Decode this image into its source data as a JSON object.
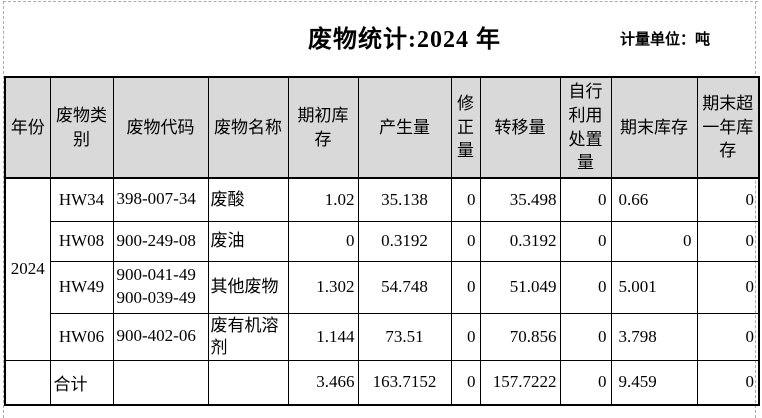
{
  "page": {
    "title": "废物统计:2024 年",
    "unit_label": "计量单位：吨"
  },
  "table": {
    "columns": [
      "年份",
      "废物类别",
      "废物代码",
      "废物名称",
      "期初库存",
      "产生量",
      "修正量",
      "转移量",
      "自行利用处置量",
      "期末库存",
      "期末超一年库存"
    ],
    "year": "2024",
    "rows": [
      {
        "category": "HW34",
        "code": "398-007-34",
        "name": "废酸",
        "opening": "1.02",
        "generated": "35.138",
        "corrected": "0",
        "transferred": "35.498",
        "self_disposed": "0",
        "closing": "0.66",
        "over_one_year": "0"
      },
      {
        "category": "HW08",
        "code": "900-249-08",
        "name": "废油",
        "opening": "0",
        "generated": "0.3192",
        "corrected": "0",
        "transferred": "0.3192",
        "self_disposed": "0",
        "closing": "0",
        "over_one_year": "0"
      },
      {
        "category": "HW49",
        "code": "900-041-49\n900-039-49",
        "name": "其他废物",
        "opening": "1.302",
        "generated": "54.748",
        "corrected": "0",
        "transferred": "51.049",
        "self_disposed": "0",
        "closing": "5.001",
        "over_one_year": "0"
      },
      {
        "category": "HW06",
        "code": "900-402-06",
        "name": "废有机溶剂",
        "opening": "1.144",
        "generated": "73.51",
        "corrected": "0",
        "transferred": "70.856",
        "self_disposed": "0",
        "closing": "3.798",
        "over_one_year": "0"
      }
    ],
    "total_row": {
      "label": "合计",
      "code": "",
      "name": "",
      "opening": "3.466",
      "generated": "163.7152",
      "corrected": "0",
      "transferred": "157.7222",
      "self_disposed": "0",
      "closing": "9.459",
      "over_one_year": "0"
    }
  },
  "colors": {
    "header_bg": "#d9d9d9",
    "border": "#000000",
    "page_boundary_dash": "#ababab"
  }
}
